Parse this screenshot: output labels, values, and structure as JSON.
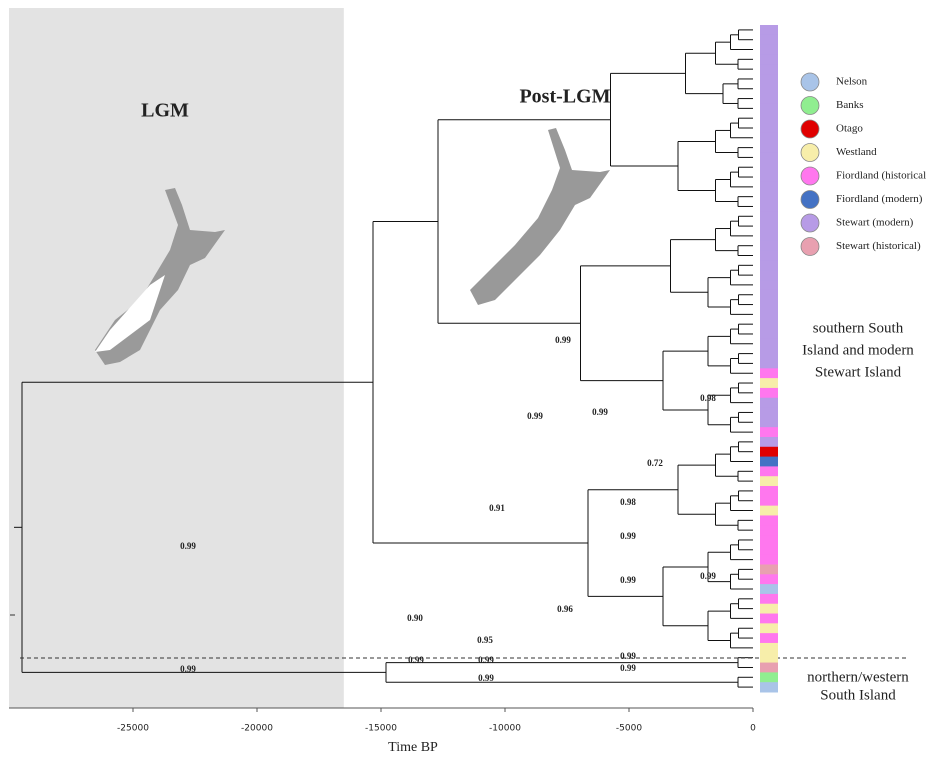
{
  "chart_data": {
    "type": "phylogeny",
    "x_label": "Time BP",
    "xlim": [
      -30000,
      0
    ],
    "xticks": [
      -25000,
      -20000,
      -15000,
      -10000,
      -5000,
      0
    ],
    "shaded_region": {
      "label": "LGM",
      "xlim": [
        -30000,
        -16500
      ]
    },
    "map_label": "Post-LGM",
    "legend": [
      {
        "name": "Nelson",
        "color": "#a9c4e8"
      },
      {
        "name": "Banks",
        "color": "#90ee90"
      },
      {
        "name": "Otago",
        "color": "#e00000"
      },
      {
        "name": "Westland",
        "color": "#f7eeaa"
      },
      {
        "name": "Fiordland (historical",
        "color": "#ff77ee"
      },
      {
        "name": "Fiordland (modern)",
        "color": "#4472c4"
      },
      {
        "name": "Stewart (modern)",
        "color": "#b79be6"
      },
      {
        "name": "Stewart (historical)",
        "color": "#e8a0b0"
      }
    ],
    "tip_groups": [
      6,
      6,
      6,
      6,
      6,
      6,
      6,
      6,
      6,
      6,
      6,
      6,
      6,
      6,
      6,
      6,
      6,
      6,
      6,
      6,
      6,
      6,
      6,
      6,
      6,
      6,
      6,
      6,
      6,
      6,
      6,
      6,
      6,
      6,
      6,
      4,
      3,
      4,
      6,
      6,
      6,
      4,
      6,
      2,
      5,
      4,
      3,
      4,
      4,
      3,
      4,
      4,
      4,
      4,
      4,
      7,
      4,
      0,
      4,
      3,
      4,
      3,
      4,
      3,
      3,
      7,
      1,
      0
    ],
    "support_labels": [
      "0.99",
      "0.98",
      "0.99",
      "0.99",
      "0.72",
      "0.98",
      "0.91",
      "0.99",
      "0.99",
      "0.99",
      "0.96",
      "0.90",
      "0.95",
      "0.99",
      "0.99",
      "0.99",
      "0.99",
      "0.99",
      "0.99",
      "0.99"
    ],
    "region_labels": [
      [
        "southern South",
        "Island and modern",
        "Stewart Island"
      ],
      [
        "northern/western",
        "South Island"
      ]
    ]
  }
}
